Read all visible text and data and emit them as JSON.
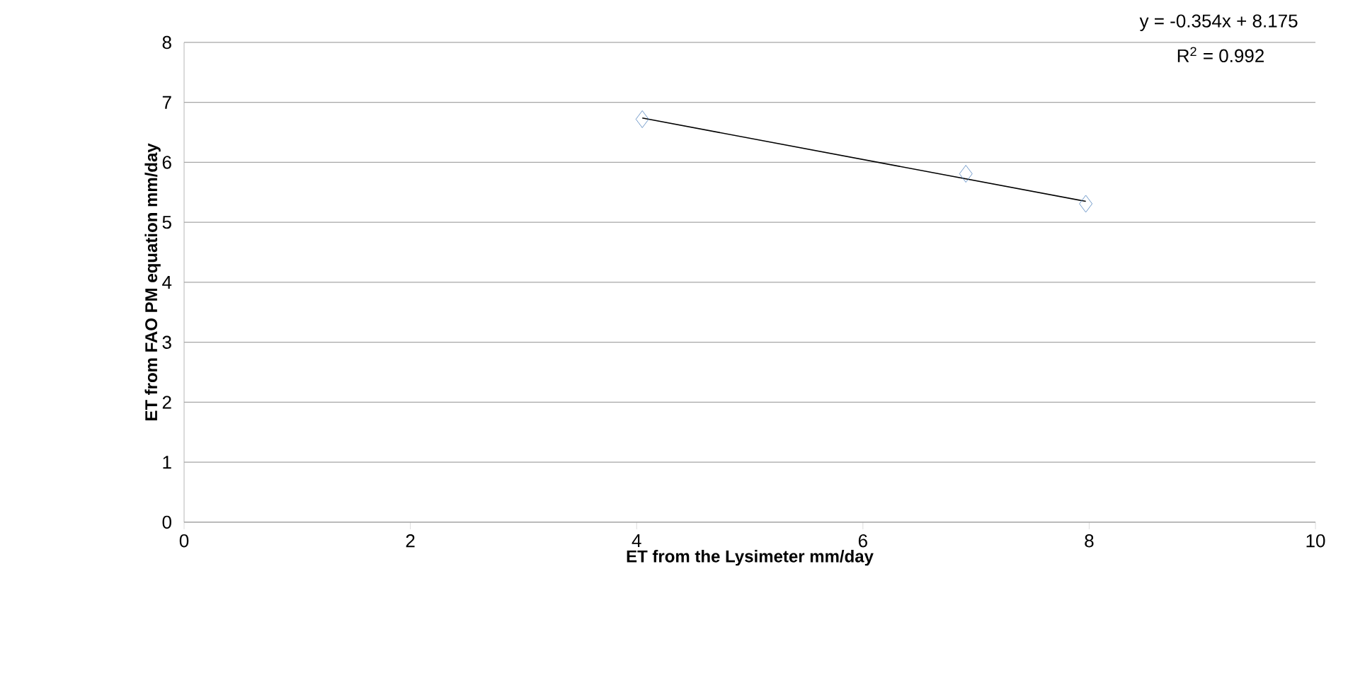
{
  "chart_data": {
    "type": "scatter",
    "xlabel": "ET from the Lysimeter mm/day",
    "ylabel": "ET from FAO PM equation mm/day",
    "xlim": [
      0,
      10
    ],
    "xticks": [
      0,
      2,
      4,
      6,
      8,
      10
    ],
    "ylim": [
      0,
      8
    ],
    "yticks": [
      0,
      1,
      2,
      3,
      4,
      5,
      6,
      7,
      8
    ],
    "grid": "y",
    "marker": "diamond",
    "series": [
      {
        "color": "#4f81bd",
        "x": [
          4.05,
          6.91,
          7.97
        ],
        "values": [
          6.72,
          5.81,
          5.31
        ]
      },
      {
        "type": "line",
        "color": "#000000",
        "marker": "none",
        "x": [
          4.05,
          7.97
        ],
        "values": [
          6.74,
          5.35
        ]
      }
    ],
    "annotations": [
      "y = -0.354x + 8.175",
      "R$^{2}$ = 0.992"
    ]
  }
}
